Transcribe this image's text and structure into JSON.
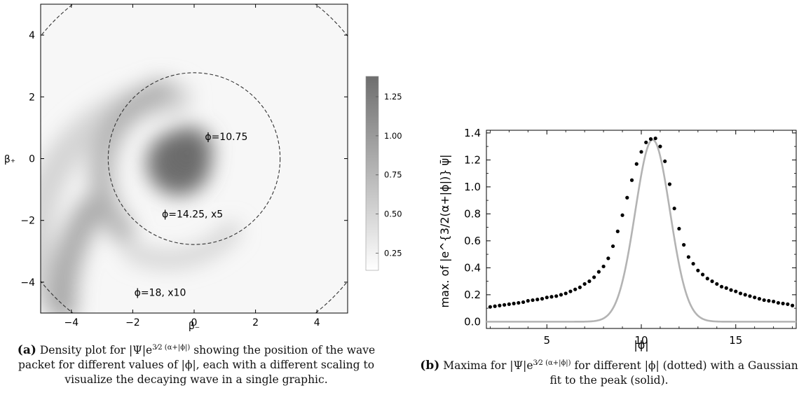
{
  "chart_data": [
    {
      "type": "heatmap",
      "xlabel": "β₋",
      "ylabel": "β₊",
      "xlim": [
        -5,
        5
      ],
      "ylim": [
        -5,
        5
      ],
      "xticks": [
        "−4",
        "−2",
        "0",
        "2",
        "4"
      ],
      "yticks": [
        "−4",
        "−2",
        "0",
        "2",
        "4"
      ],
      "colorbar": {
        "range": [
          0.14,
          1.38
        ],
        "ticks": [
          "0.25",
          "0.50",
          "0.75",
          "1.00",
          "1.25"
        ]
      },
      "circles": [
        {
          "center": [
            0,
            0
          ],
          "radius": 2.8
        },
        {
          "center": [
            0,
            0
          ],
          "radius": 6.4
        }
      ],
      "annotations": [
        {
          "text": "ϕ=10.75",
          "x": 0.35,
          "y": 0.6
        },
        {
          "text": "ϕ=14.25, x5",
          "x": -1.05,
          "y": -1.9
        },
        {
          "text": "ϕ=18, x10",
          "x": -1.95,
          "y": -4.45
        }
      ],
      "grid": false
    },
    {
      "type": "scatter",
      "xlabel": "|ϕ|",
      "ylabel": "max. of |e^{3/2(α+|ϕ|)} ψ̄|",
      "xlim": [
        1.8,
        18.2
      ],
      "ylim": [
        -0.05,
        1.42
      ],
      "xticks": [
        "5",
        "10",
        "15"
      ],
      "yticks": [
        "0.0",
        "0.2",
        "0.4",
        "0.6",
        "0.8",
        "1.0",
        "1.2",
        "1.4"
      ],
      "series": [
        {
          "kind": "dotted",
          "x": [
            2.0,
            2.25,
            2.5,
            2.75,
            3.0,
            3.25,
            3.5,
            3.75,
            4.0,
            4.25,
            4.5,
            4.75,
            5.0,
            5.25,
            5.5,
            5.75,
            6.0,
            6.25,
            6.5,
            6.75,
            7.0,
            7.25,
            7.5,
            7.75,
            8.0,
            8.25,
            8.5,
            8.75,
            9.0,
            9.25,
            9.5,
            9.75,
            10.0,
            10.25,
            10.5,
            10.75,
            11.0,
            11.25,
            11.5,
            11.75,
            12.0,
            12.25,
            12.5,
            12.75,
            13.0,
            13.25,
            13.5,
            13.75,
            14.0,
            14.25,
            14.5,
            14.75,
            15.0,
            15.25,
            15.5,
            15.75,
            16.0,
            16.25,
            16.5,
            16.75,
            17.0,
            17.25,
            17.5,
            17.75,
            18.0
          ],
          "y": [
            0.11,
            0.115,
            0.12,
            0.125,
            0.13,
            0.135,
            0.14,
            0.145,
            0.155,
            0.16,
            0.165,
            0.17,
            0.18,
            0.185,
            0.19,
            0.2,
            0.21,
            0.225,
            0.24,
            0.255,
            0.28,
            0.3,
            0.33,
            0.37,
            0.41,
            0.47,
            0.56,
            0.67,
            0.79,
            0.92,
            1.05,
            1.17,
            1.26,
            1.33,
            1.355,
            1.36,
            1.3,
            1.19,
            1.02,
            0.84,
            0.69,
            0.57,
            0.48,
            0.43,
            0.38,
            0.35,
            0.32,
            0.3,
            0.28,
            0.26,
            0.25,
            0.235,
            0.225,
            0.21,
            0.2,
            0.19,
            0.18,
            0.17,
            0.16,
            0.155,
            0.15,
            0.14,
            0.135,
            0.13,
            0.12
          ]
        },
        {
          "kind": "solid",
          "amplitude": 1.35,
          "mean": 10.6,
          "sigma": 0.92
        }
      ],
      "grid": false
    }
  ],
  "captions": {
    "a_label": "(a)",
    "a_text_1": "Density plot for |Ψ|e",
    "a_exp": "3⁄2 (α+|ϕ|)",
    "a_text_2": " showing the position of the wave packet for different values of |ϕ|, each with a different scaling to visualize the decaying wave in a single graphic.",
    "b_label": "(b)",
    "b_text_1": "Maxima for |Ψ|e",
    "b_exp": "3⁄2 (α+|ϕ|)",
    "b_text_2": " for different |ϕ| (dotted) with a Gaussian fit to the peak (solid)."
  }
}
